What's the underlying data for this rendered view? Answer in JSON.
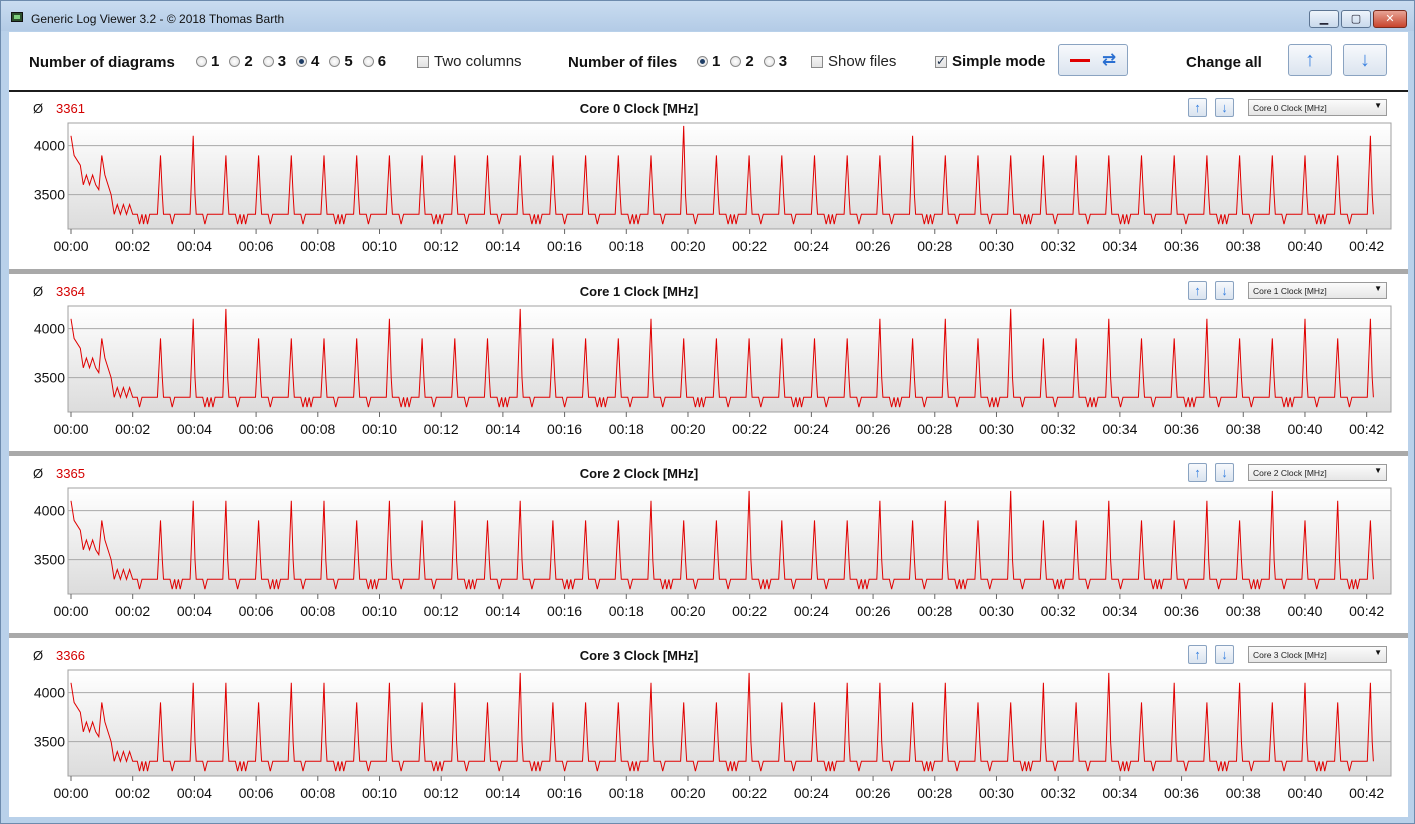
{
  "window": {
    "title": "Generic Log Viewer 3.2 - © 2018 Thomas Barth",
    "min": "▁",
    "max": "▢",
    "close": "✕"
  },
  "toolbar": {
    "diagrams_label": "Number of diagrams",
    "diagram_options": [
      "1",
      "2",
      "3",
      "4",
      "5",
      "6"
    ],
    "diagram_selected": "4",
    "two_columns_label": "Two columns",
    "two_columns_checked": false,
    "files_label": "Number of files",
    "file_options": [
      "1",
      "2",
      "3"
    ],
    "file_selected": "1",
    "show_files_label": "Show files",
    "show_files_checked": false,
    "simple_mode_label": "Simple mode",
    "simple_mode_checked": true,
    "line_color": "#e00000",
    "change_all_label": "Change all",
    "up_icon": "↑",
    "down_icon": "↓",
    "refresh_icon": "⇄"
  },
  "icons": {
    "avg_symbol": "Ø",
    "dropdown_arrow": "▼",
    "up_arrow": "↑",
    "down_arrow": "↓"
  },
  "panels": [
    {
      "average": "3361",
      "title": "Core 0 Clock [MHz]",
      "selector": "Core 0 Clock [MHz]"
    },
    {
      "average": "3364",
      "title": "Core 1 Clock [MHz]",
      "selector": "Core 1 Clock [MHz]"
    },
    {
      "average": "3365",
      "title": "Core 2 Clock [MHz]",
      "selector": "Core 2 Clock [MHz]"
    },
    {
      "average": "3366",
      "title": "Core 3 Clock [MHz]",
      "selector": "Core 3 Clock [MHz]"
    }
  ],
  "chart_data": [
    {
      "type": "line",
      "title": "Core 0 Clock [MHz]",
      "ylim": [
        3150,
        4230
      ],
      "xlim_minutes": [
        0,
        42.4
      ],
      "x_ticks": [
        "00:00",
        "00:02",
        "00:04",
        "00:06",
        "00:08",
        "00:10",
        "00:12",
        "00:14",
        "00:16",
        "00:18",
        "00:20",
        "00:22",
        "00:24",
        "00:26",
        "00:28",
        "00:30",
        "00:32",
        "00:34",
        "00:36",
        "00:38",
        "00:40",
        "00:42"
      ],
      "y_ticks": [
        4000,
        3500
      ],
      "grid": true,
      "series": [
        {
          "color": "#e00000",
          "spike_peaks": [
            3900,
            4100,
            3900,
            3900,
            3900,
            3900,
            3900,
            3900,
            3900,
            3900,
            3900,
            3900,
            3900,
            3900,
            3900,
            3900,
            4200,
            3900,
            3900,
            3900,
            3900,
            3900,
            3900,
            4100,
            3900,
            3900,
            3900,
            3900,
            3900,
            3900,
            3900,
            3900,
            3900,
            3900,
            3900,
            3900,
            3900,
            4100,
            3900,
            3900
          ]
        }
      ]
    },
    {
      "type": "line",
      "title": "Core 1 Clock [MHz]",
      "ylim": [
        3150,
        4230
      ],
      "xlim_minutes": [
        0,
        42.4
      ],
      "x_ticks": [
        "00:00",
        "00:02",
        "00:04",
        "00:06",
        "00:08",
        "00:10",
        "00:12",
        "00:14",
        "00:16",
        "00:18",
        "00:20",
        "00:22",
        "00:24",
        "00:26",
        "00:28",
        "00:30",
        "00:32",
        "00:34",
        "00:36",
        "00:38",
        "00:40",
        "00:42"
      ],
      "y_ticks": [
        4000,
        3500
      ],
      "grid": true,
      "series": [
        {
          "color": "#e00000",
          "spike_peaks": [
            3900,
            4100,
            4200,
            3900,
            3900,
            3900,
            3900,
            4100,
            3900,
            3900,
            3900,
            4200,
            3900,
            3900,
            3900,
            4100,
            3900,
            3900,
            3900,
            3900,
            3900,
            3900,
            4100,
            3900,
            4100,
            3900,
            4200,
            3900,
            3900,
            4100,
            3900,
            3900,
            4100,
            3900,
            3900,
            4100,
            3900,
            4100,
            3900,
            3900
          ]
        }
      ]
    },
    {
      "type": "line",
      "title": "Core 2 Clock [MHz]",
      "ylim": [
        3150,
        4230
      ],
      "xlim_minutes": [
        0,
        42.4
      ],
      "x_ticks": [
        "00:00",
        "00:02",
        "00:04",
        "00:06",
        "00:08",
        "00:10",
        "00:12",
        "00:14",
        "00:16",
        "00:18",
        "00:20",
        "00:22",
        "00:24",
        "00:26",
        "00:28",
        "00:30",
        "00:32",
        "00:34",
        "00:36",
        "00:38",
        "00:40",
        "00:42"
      ],
      "y_ticks": [
        4000,
        3500
      ],
      "grid": true,
      "series": [
        {
          "color": "#e00000",
          "spike_peaks": [
            3900,
            4100,
            4100,
            3900,
            4100,
            4100,
            3900,
            4100,
            3900,
            4100,
            3900,
            4100,
            3900,
            3900,
            3900,
            4100,
            3900,
            3900,
            4200,
            3900,
            3900,
            3900,
            4100,
            3900,
            4100,
            3900,
            4200,
            3900,
            3900,
            4100,
            3900,
            3900,
            4100,
            3900,
            4200,
            3900,
            4100,
            3900,
            4100,
            3900
          ]
        }
      ]
    },
    {
      "type": "line",
      "title": "Core 3 Clock [MHz]",
      "ylim": [
        3150,
        4230
      ],
      "xlim_minutes": [
        0,
        42.4
      ],
      "x_ticks": [
        "00:00",
        "00:02",
        "00:04",
        "00:06",
        "00:08",
        "00:10",
        "00:12",
        "00:14",
        "00:16",
        "00:18",
        "00:20",
        "00:22",
        "00:24",
        "00:26",
        "00:28",
        "00:30",
        "00:32",
        "00:34",
        "00:36",
        "00:38",
        "00:40",
        "00:42"
      ],
      "y_ticks": [
        4000,
        3500
      ],
      "grid": true,
      "series": [
        {
          "color": "#e00000",
          "spike_peaks": [
            3900,
            4100,
            4100,
            3900,
            4100,
            4100,
            3900,
            4100,
            3900,
            4100,
            3900,
            4200,
            3900,
            3900,
            3900,
            4100,
            3900,
            3900,
            4200,
            3900,
            3900,
            4100,
            4100,
            3900,
            4100,
            3900,
            3900,
            4100,
            3900,
            4200,
            3900,
            4100,
            3900,
            4100,
            3900,
            4100,
            3900,
            4100,
            3900,
            3900
          ]
        }
      ]
    }
  ]
}
